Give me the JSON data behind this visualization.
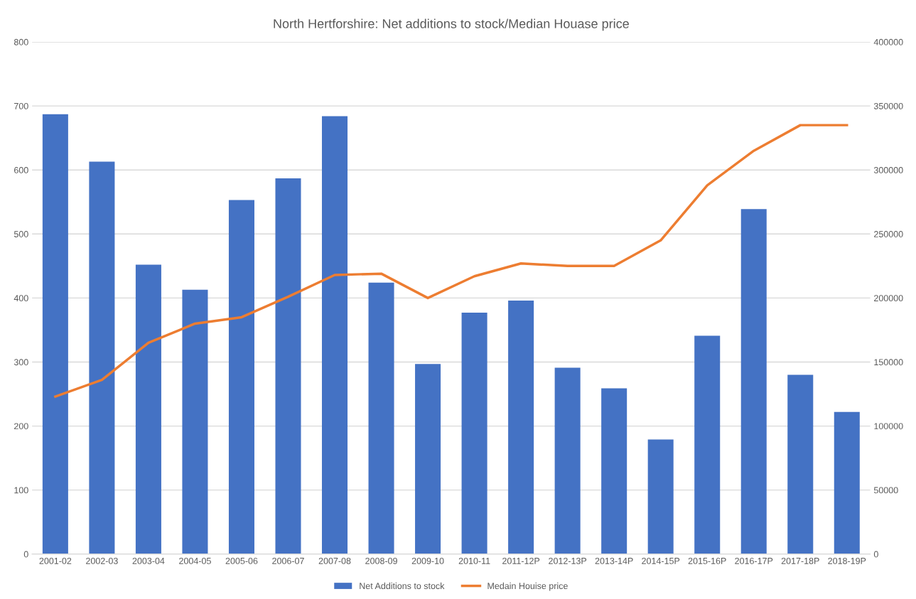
{
  "chart_data": {
    "type": "bar",
    "title": "North Hertforshire: Net additions to stock/Median Houase price",
    "categories": [
      "2001-02",
      "2002-03",
      "2003-04",
      "2004-05",
      "2005-06",
      "2006-07",
      "2007-08",
      "2008-09",
      "2009-10",
      "2010-11",
      "2011-12P",
      "2012-13P",
      "2013-14P",
      "2014-15P",
      "2015-16P",
      "2016-17P",
      "2017-18P",
      "2018-19P"
    ],
    "series": [
      {
        "name": "Net Additions to stock",
        "color": "#4472c4",
        "values": [
          687,
          613,
          452,
          413,
          553,
          587,
          684,
          424,
          297,
          377,
          396,
          291,
          259,
          179,
          341,
          539,
          280,
          222
        ]
      },
      {
        "name": "Medain Houise price",
        "color": "#ed7d31",
        "type": "line",
        "axis": "y2",
        "values": [
          123000,
          136000,
          165000,
          180000,
          185000,
          201000,
          218000,
          219000,
          200000,
          217000,
          227000,
          225000,
          225000,
          245000,
          288000,
          315000,
          335000,
          335000
        ]
      }
    ],
    "ylim": [
      0,
      800
    ],
    "yticks": [
      0,
      100,
      200,
      300,
      400,
      500,
      600,
      700,
      800
    ],
    "y2lim": [
      0,
      400000
    ],
    "y2ticks": [
      0,
      50000,
      100000,
      150000,
      200000,
      250000,
      300000,
      350000,
      400000
    ],
    "grid": "y",
    "legend": "bottom"
  }
}
